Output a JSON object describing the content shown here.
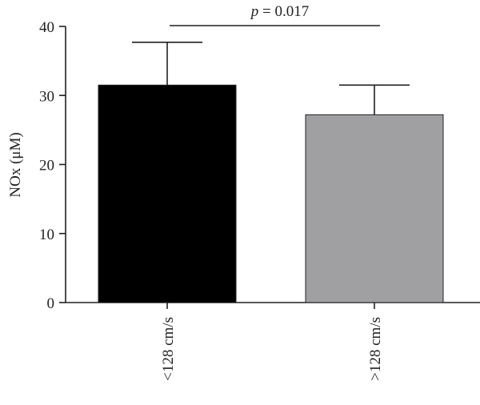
{
  "chart_data": {
    "type": "bar",
    "title": "",
    "xlabel": "",
    "ylabel": "NOx (μM)",
    "ylim": [
      0,
      40
    ],
    "yticks": [
      "0",
      "10",
      "20",
      "30",
      "40"
    ],
    "grid": false,
    "categories": [
      "<128 cm/s",
      ">128 cm/s"
    ],
    "values": [
      31.5,
      27.2
    ],
    "error_upper": [
      37.7,
      31.5
    ],
    "colors": [
      "#000000",
      "#a0a0a3"
    ],
    "annotation": {
      "p_symbol": "p",
      "p_rest": " = 0.017"
    }
  }
}
